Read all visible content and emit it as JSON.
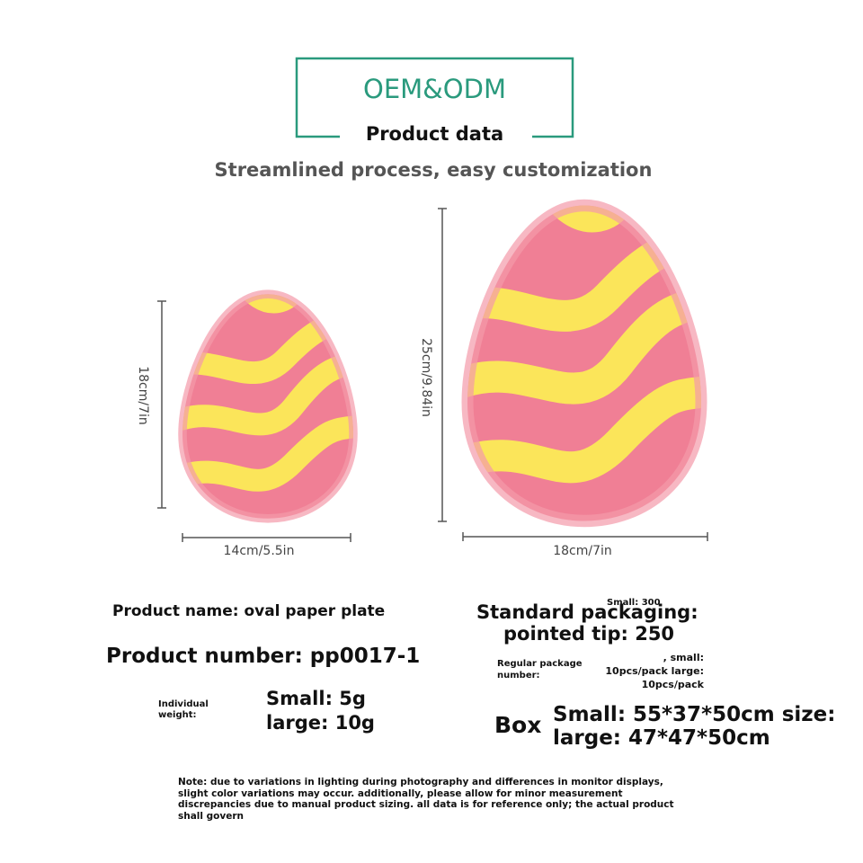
{
  "header": {
    "brand": "OEM&ODM",
    "title": "Product data",
    "subtitle": "Streamlined process, easy customization"
  },
  "plates": [
    {
      "height": "18cm/7in",
      "width": "14cm/5.5in"
    },
    {
      "height": "25cm/9.84in",
      "width": "18cm/7in"
    }
  ],
  "info": {
    "product_name": "Product name: oval paper plate",
    "product_number": "Product number: pp0017-1",
    "weight_label": "Individual weight:",
    "weight_small": "Small: 5g",
    "weight_large": "large: 10g",
    "packaging_label": "Standard packaging:",
    "packaging_small": "Small: 300",
    "packaging_tip": "pointed tip: 250",
    "regular_label": "Regular package number:",
    "regular_values": [
      ", small:",
      "10pcs/pack large:",
      "10pcs/pack"
    ],
    "box_label": "Box",
    "box_small": "Small: 55*37*50cm size:",
    "box_large": "large: 47*47*50cm"
  },
  "note": "Note: due to variations in lighting during photography and differences in monitor displays, slight color variations may occur. additionally, please allow for minor measurement discrepancies due to manual product sizing. all data is for reference only; the actual product shall govern"
}
